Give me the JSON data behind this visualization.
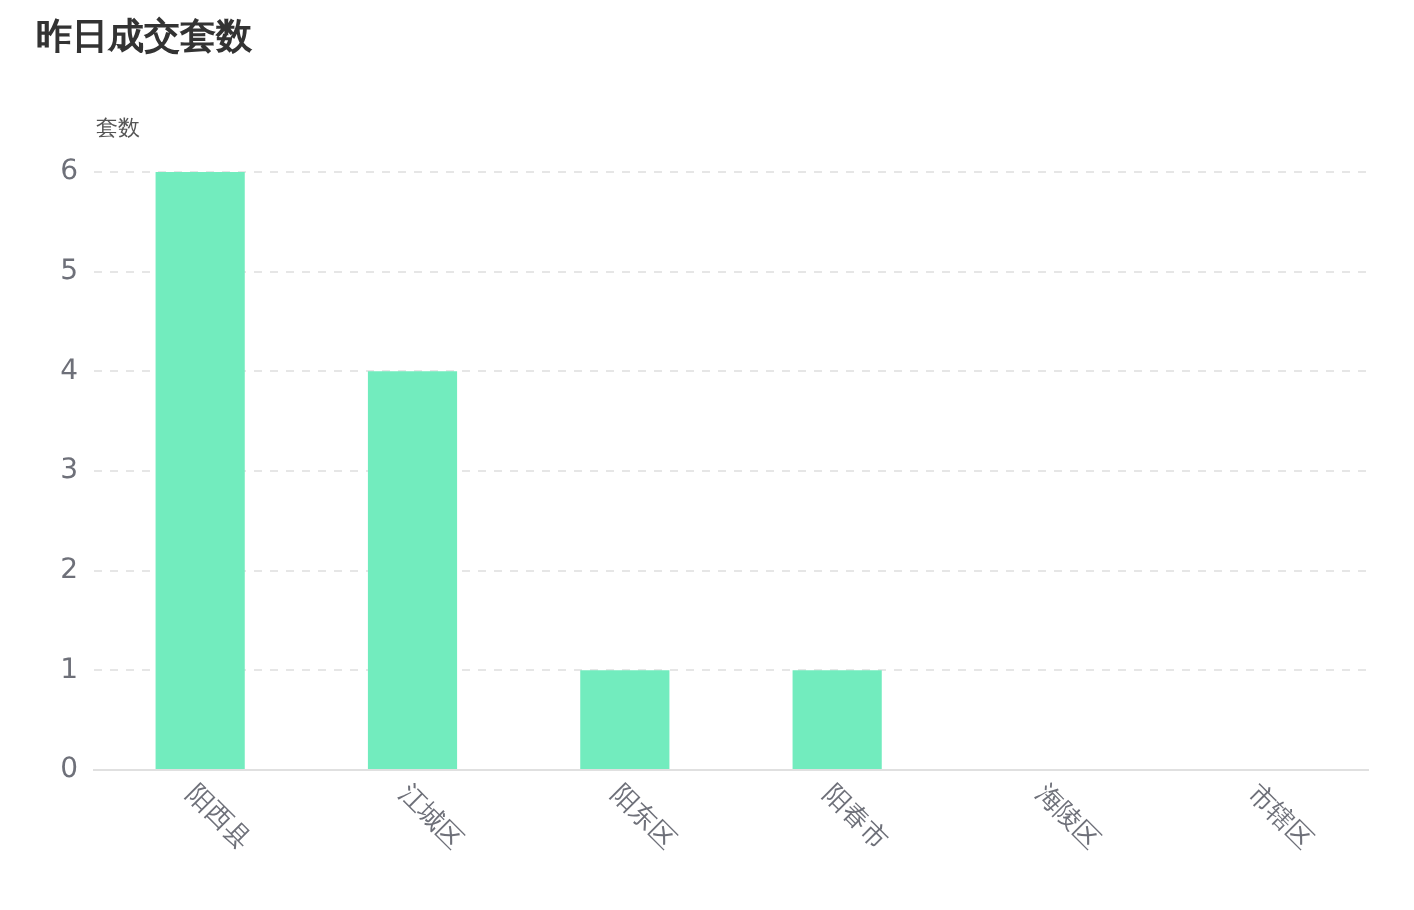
{
  "chart_data": {
    "type": "bar",
    "title": "昨日成交套数",
    "ylabel": "套数",
    "categories": [
      "阳西县",
      "江城区",
      "阳东区",
      "阳春市",
      "海陵区",
      "市辖区"
    ],
    "values": [
      6,
      4,
      1,
      1,
      0,
      0
    ],
    "color": "#72ecbe",
    "ylim": [
      0,
      6
    ],
    "yticks": [
      0,
      1,
      2,
      3,
      4,
      5,
      6
    ],
    "grid": "y"
  }
}
